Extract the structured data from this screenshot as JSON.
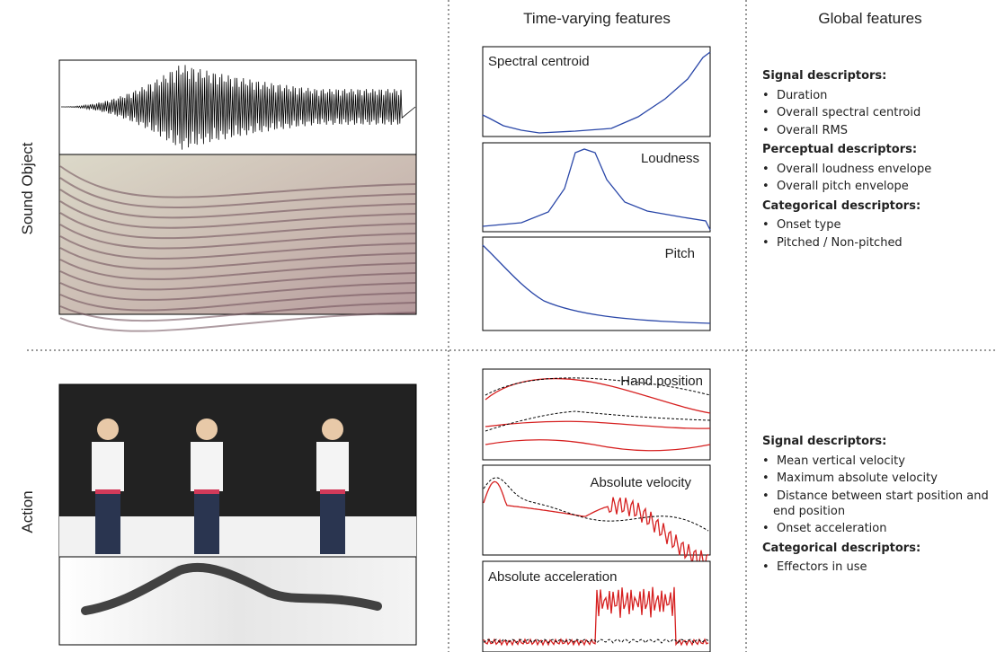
{
  "row_labels": [
    "Sound Object",
    "Action"
  ],
  "column_headers": [
    "Time-varying features",
    "Global features"
  ],
  "sound_panels": [
    "Spectral centroid",
    "Loudness",
    "Pitch"
  ],
  "action_panels": [
    "Hand position",
    "Absolute velocity",
    "Absolute acceleration"
  ],
  "sound_global": [
    {
      "heading": "Signal descriptors:",
      "items": [
        "Duration",
        "Overall spectral centroid",
        "Overall RMS"
      ]
    },
    {
      "heading": "Perceptual descriptors:",
      "items": [
        "Overall loudness envelope",
        "Overall pitch envelope"
      ]
    },
    {
      "heading": "Categorical descriptors:",
      "items": [
        "Onset type",
        "Pitched / Non-pitched"
      ]
    }
  ],
  "action_global": [
    {
      "heading": "Signal descriptors:",
      "items": [
        "Mean vertical velocity",
        "Maximum absolute velocity",
        "Distance between start position and end position",
        "Onset acceleration"
      ]
    },
    {
      "heading": "Categorical descriptors:",
      "items": [
        "Effectors in use"
      ]
    }
  ]
}
